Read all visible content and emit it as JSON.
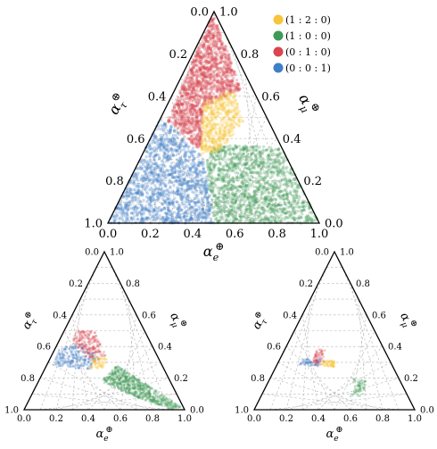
{
  "legend": [
    {
      "label": "(1 : 2 : 0)",
      "color": "#f7c43a"
    },
    {
      "label": "(1 : 0 : 0)",
      "color": "#3f9a57"
    },
    {
      "label": "(0 : 1 : 0)",
      "color": "#d9464f"
    },
    {
      "label": "(0 : 0 : 1)",
      "color": "#3f7fc6"
    }
  ],
  "chart_data": [
    {
      "type": "scatter",
      "panel": "top",
      "ternary": true,
      "bottom_axis_label": "α_e^⊕",
      "left_axis_label": "α_τ^⊕",
      "right_axis_label": "α_μ^⊕",
      "bottom_ticks": [
        "0.0",
        "0.2",
        "0.4",
        "0.6",
        "0.8",
        "1.0"
      ],
      "left_ticks": [
        "1.0",
        "0.8",
        "0.6",
        "0.4",
        "0.2",
        "0.0"
      ],
      "right_ticks": [
        "0.0",
        "0.2",
        "0.4",
        "0.6",
        "0.8",
        "1.0"
      ],
      "legend_placement": "top-right",
      "series": [
        {
          "name": "(0 : 0 : 1)",
          "color": "#3f7fc6",
          "region": [
            [
              0.0,
              0.0
            ],
            [
              0.5,
              0.0
            ],
            [
              0.46,
              0.3
            ],
            [
              0.28,
              0.48
            ],
            [
              0.0,
              0.55
            ]
          ]
        },
        {
          "name": "(1 : 0 : 0)",
          "color": "#3f9a57",
          "region": [
            [
              0.5,
              0.0
            ],
            [
              1.0,
              0.0
            ],
            [
              0.82,
              0.36
            ],
            [
              0.5,
              0.37
            ],
            [
              0.46,
              0.3
            ]
          ]
        },
        {
          "name": "(0 : 1 : 0)",
          "color": "#d9464f",
          "region": [
            [
              0.28,
              0.48
            ],
            [
              0.44,
              0.34
            ],
            [
              0.45,
              0.55
            ],
            [
              0.63,
              0.63
            ],
            [
              0.5,
              1.0
            ]
          ]
        },
        {
          "name": "(1 : 2 : 0)",
          "color": "#f7c43a",
          "region": [
            [
              0.44,
              0.32
            ],
            [
              0.53,
              0.34
            ],
            [
              0.64,
              0.48
            ],
            [
              0.6,
              0.63
            ],
            [
              0.45,
              0.57
            ]
          ]
        }
      ]
    },
    {
      "type": "scatter",
      "panel": "bottom-left",
      "ternary": true,
      "bottom_axis_label": "α_e^⊕",
      "left_axis_label": "α_τ^⊕",
      "right_axis_label": "α_μ^⊕",
      "bottom_ticks": [
        "0.0",
        "0.2",
        "0.4",
        "0.6",
        "0.8",
        "1.0"
      ],
      "left_ticks": [
        "1.0",
        "0.8",
        "0.6",
        "0.4",
        "0.2",
        "0.0"
      ],
      "right_ticks": [
        "0.0",
        "0.2",
        "0.4",
        "0.6",
        "0.8",
        "1.0"
      ],
      "series": [
        {
          "name": "(0 : 0 : 1)",
          "color": "#3f7fc6",
          "region": [
            [
              0.18,
              0.28
            ],
            [
              0.42,
              0.25
            ],
            [
              0.46,
              0.35
            ],
            [
              0.34,
              0.43
            ],
            [
              0.22,
              0.38
            ]
          ]
        },
        {
          "name": "(0 : 1 : 0)",
          "color": "#d9464f",
          "region": [
            [
              0.3,
              0.42
            ],
            [
              0.42,
              0.3
            ],
            [
              0.52,
              0.32
            ],
            [
              0.44,
              0.5
            ],
            [
              0.32,
              0.5
            ]
          ]
        },
        {
          "name": "(1 : 2 : 0)",
          "color": "#f7c43a",
          "region": [
            [
              0.4,
              0.26
            ],
            [
              0.5,
              0.26
            ],
            [
              0.52,
              0.32
            ],
            [
              0.44,
              0.34
            ]
          ]
        },
        {
          "name": "(1 : 0 : 0)",
          "color": "#3f9a57",
          "region": [
            [
              0.48,
              0.18
            ],
            [
              0.58,
              0.28
            ],
            [
              0.98,
              0.02
            ],
            [
              0.92,
              0.0
            ],
            [
              0.7,
              0.08
            ]
          ]
        }
      ]
    },
    {
      "type": "scatter",
      "panel": "bottom-right",
      "ternary": true,
      "bottom_axis_label": "α_e^⊕",
      "left_axis_label": "α_τ^⊕",
      "right_axis_label": "α_μ^⊕",
      "bottom_ticks": [
        "0.0",
        "0.2",
        "0.4",
        "0.6",
        "0.8",
        "1.0"
      ],
      "left_ticks": [
        "1.0",
        "0.8",
        "0.6",
        "0.4",
        "0.2",
        "0.0"
      ],
      "right_ticks": [
        "0.0",
        "0.2",
        "0.4",
        "0.6",
        "0.8",
        "1.0"
      ],
      "series": [
        {
          "name": "(0 : 0 : 1)",
          "color": "#3f7fc6",
          "region": [
            [
              0.28,
              0.28
            ],
            [
              0.4,
              0.27
            ],
            [
              0.42,
              0.32
            ],
            [
              0.3,
              0.32
            ]
          ]
        },
        {
          "name": "(0 : 1 : 0)",
          "color": "#d9464f",
          "region": [
            [
              0.36,
              0.28
            ],
            [
              0.44,
              0.29
            ],
            [
              0.44,
              0.38
            ],
            [
              0.38,
              0.39
            ]
          ]
        },
        {
          "name": "(1 : 2 : 0)",
          "color": "#f7c43a",
          "region": [
            [
              0.42,
              0.28
            ],
            [
              0.5,
              0.27
            ],
            [
              0.5,
              0.31
            ],
            [
              0.43,
              0.31
            ]
          ]
        },
        {
          "name": "(1 : 0 : 0)",
          "color": "#3f9a57",
          "region": [
            [
              0.6,
              0.08
            ],
            [
              0.68,
              0.09
            ],
            [
              0.7,
              0.18
            ],
            [
              0.62,
              0.2
            ]
          ]
        }
      ]
    }
  ]
}
